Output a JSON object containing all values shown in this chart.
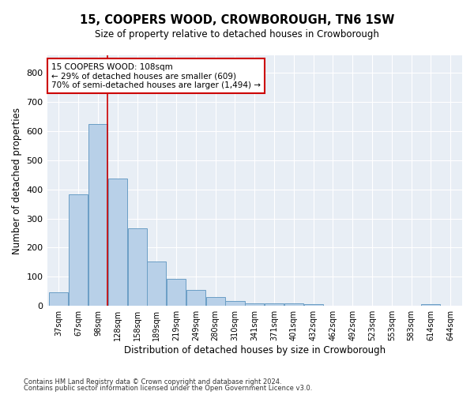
{
  "title": "15, COOPERS WOOD, CROWBOROUGH, TN6 1SW",
  "subtitle": "Size of property relative to detached houses in Crowborough",
  "xlabel": "Distribution of detached houses by size in Crowborough",
  "ylabel": "Number of detached properties",
  "categories": [
    "37sqm",
    "67sqm",
    "98sqm",
    "128sqm",
    "158sqm",
    "189sqm",
    "219sqm",
    "249sqm",
    "280sqm",
    "310sqm",
    "341sqm",
    "371sqm",
    "401sqm",
    "432sqm",
    "462sqm",
    "492sqm",
    "523sqm",
    "553sqm",
    "583sqm",
    "614sqm",
    "644sqm"
  ],
  "values": [
    47,
    383,
    625,
    437,
    265,
    152,
    92,
    55,
    30,
    18,
    9,
    9,
    9,
    5,
    0,
    0,
    0,
    0,
    0,
    5,
    0
  ],
  "bar_color": "#b8d0e8",
  "bar_edge_color": "#6a9ec5",
  "bg_color": "#e8eef5",
  "grid_color": "#ffffff",
  "annotation_text": "15 COOPERS WOOD: 108sqm\n← 29% of detached houses are smaller (609)\n70% of semi-detached houses are larger (1,494) →",
  "annotation_box_color": "#ffffff",
  "annotation_border_color": "#cc0000",
  "vline_x": 2.5,
  "vline_color": "#cc0000",
  "ylim": [
    0,
    860
  ],
  "yticks": [
    0,
    100,
    200,
    300,
    400,
    500,
    600,
    700,
    800
  ],
  "footer1": "Contains HM Land Registry data © Crown copyright and database right 2024.",
  "footer2": "Contains public sector information licensed under the Open Government Licence v3.0."
}
